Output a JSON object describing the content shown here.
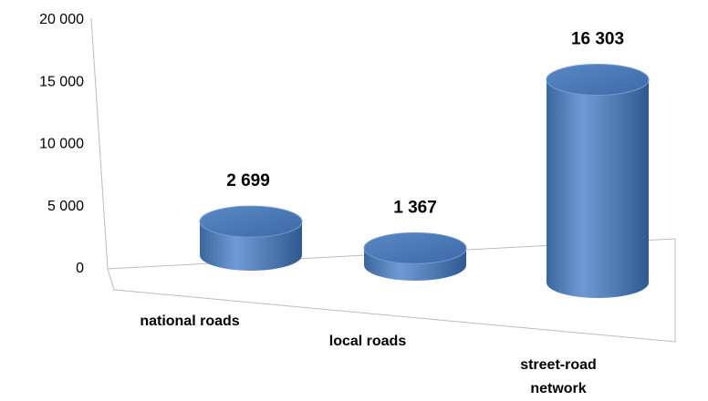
{
  "chart_data": {
    "type": "bar3d",
    "categories": [
      "national roads",
      "local roads",
      "street-road network"
    ],
    "values": [
      2699,
      1367,
      16303
    ],
    "value_labels": [
      "2 699",
      "1 367",
      "16 303"
    ],
    "color": "#4f81bd",
    "ylim": [
      0,
      20000
    ],
    "yticks": [
      0,
      {
        "value": 5000,
        "label": "5 000"
      },
      {
        "value": 10000,
        "label": "10 000"
      },
      {
        "value": 15000,
        "label": "15 000"
      },
      {
        "value": 20000,
        "label": "20 000"
      }
    ]
  }
}
